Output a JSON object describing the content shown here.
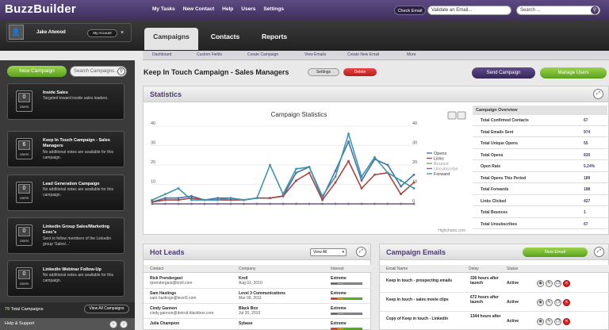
{
  "app": {
    "logo": "BuzzBuilder"
  },
  "topnav": [
    "My Tasks",
    "New Contact",
    "Help",
    "Users",
    "Settings"
  ],
  "top": {
    "check_email": "Check Email",
    "validate_placeholder": "Validate an Email...",
    "search_placeholder": "Search ...",
    "search_icon": "search-icon"
  },
  "user": {
    "name": "Jake Atwood",
    "account": "My Account",
    "close": "×"
  },
  "tabs": [
    "Campaigns",
    "Contacts",
    "Reports"
  ],
  "subnav": [
    "Dashboard",
    "Custom Fields",
    "Create Campaign",
    "View Emails",
    "Create New Email",
    "More"
  ],
  "sidebar": {
    "new_campaign": "New Campaign",
    "search_placeholder": "Search Campaigns...",
    "campaigns": [
      {
        "count": "0",
        "users": "Users",
        "title": "Inside Sales",
        "desc": "Targeted toward inside sales leaders."
      },
      {
        "count": "6",
        "users": "Users",
        "title": "Keep In Touch Campaign - Sales Managers",
        "desc": "No additional notes are available for this campaign."
      },
      {
        "count": "0",
        "users": "Users",
        "title": "Lead Generation Campaign",
        "desc": "No additional notes are available for this campaign."
      },
      {
        "count": "0",
        "users": "Users",
        "title": "Linkedin Group Sales/Marketing Exec's",
        "desc": "Sent to fellow members of the Linkedin group 'Sales/...'"
      },
      {
        "count": "0",
        "users": "Users",
        "title": "Linkedin Webinar Follow-Up",
        "desc": "No additional notes are available for this campaign."
      }
    ],
    "total_count": "79",
    "total_label": "Total Campaigns",
    "view_all": "View All Campaigns",
    "help": "Help & Support",
    "prev": "‹",
    "next": "›"
  },
  "campaign": {
    "title": "Keep In Touch Campaign - Sales Managers",
    "settings": "Settings",
    "delete": "Delete",
    "send": "Send Campaign",
    "manage": "Manage Users"
  },
  "statistics": {
    "title": "Statistics",
    "expand": "⤢"
  },
  "chart_data": {
    "type": "line",
    "title": "Campaign Statistics",
    "credit": "Highcharts.com",
    "x": [
      0,
      1,
      2,
      3,
      4,
      5,
      6,
      7,
      8,
      9,
      10,
      11,
      12,
      13,
      14,
      15,
      16,
      17,
      18,
      19,
      20
    ],
    "ylim": [
      0,
      40
    ],
    "yticks": [
      0,
      10,
      20,
      30,
      40
    ],
    "series": [
      {
        "name": "Opens",
        "color": "#4572a7",
        "values": [
          1,
          3,
          3,
          4,
          2,
          3,
          3,
          2,
          3,
          3,
          4,
          16,
          19,
          3,
          17,
          32,
          12,
          23,
          20,
          9,
          15
        ]
      },
      {
        "name": "Links",
        "color": "#aa4643",
        "values": [
          1,
          2,
          2,
          3,
          2,
          2,
          2,
          2,
          3,
          3,
          4,
          12,
          16,
          2,
          11,
          22,
          8,
          15,
          16,
          5,
          11
        ]
      },
      {
        "name": "Bounce",
        "color": "#89a54e",
        "values": [
          0,
          0,
          0,
          0,
          0,
          0,
          0,
          0,
          0,
          0,
          0,
          0,
          0,
          0,
          0,
          0,
          0,
          0,
          0,
          0,
          0
        ]
      },
      {
        "name": "Unsubscribe",
        "color": "#80699b",
        "values": [
          0,
          0,
          0,
          0,
          0,
          0,
          0,
          0,
          0,
          0,
          0,
          0,
          0,
          0,
          0,
          0,
          0,
          0,
          0,
          0,
          0
        ]
      },
      {
        "name": "Forward",
        "color": "#3d96ae",
        "values": [
          2,
          5,
          8,
          2,
          2,
          2,
          3,
          2,
          3,
          20,
          5,
          18,
          19,
          4,
          14,
          36,
          14,
          24,
          16,
          12,
          8
        ]
      }
    ]
  },
  "overview": {
    "title": "Campaign Overview",
    "rows": [
      {
        "k": "Total Confirmed Contacts",
        "v": "67"
      },
      {
        "k": "Total Emails Sent",
        "v": "974"
      },
      {
        "k": "Total Unique Opens",
        "v": "55"
      },
      {
        "k": "Total Opens",
        "v": "830"
      },
      {
        "k": "Open Rate",
        "v": "5.24%"
      },
      {
        "k": "Total Opens This Period",
        "v": "189"
      },
      {
        "k": "Total Forwards",
        "v": "188"
      },
      {
        "k": "Links Clicked",
        "v": "427"
      },
      {
        "k": "Total Bounces",
        "v": "1"
      },
      {
        "k": "Total Unsubscribes",
        "v": "67"
      }
    ]
  },
  "hot_leads": {
    "title": "Hot Leads",
    "filter": "View All",
    "cols": [
      "Contact",
      "Company",
      "Interest"
    ],
    "rows": [
      {
        "name": "Rick Prendergast",
        "email": "rprendergast@kroll.com",
        "company": "Kroll",
        "date": "Aug 02, 2010",
        "interest": "Extreme"
      },
      {
        "name": "Sam Hastings",
        "email": "sam.hastings@level3.com",
        "company": "Level 3 Communications",
        "date": "Mar 09, 2011",
        "interest": "Extreme"
      },
      {
        "name": "Cindy Gannon",
        "email": "cindy.gannon@detroit.blackbox.com",
        "company": "Black Box",
        "date": "Jul 20, 2010",
        "interest": "Extreme"
      },
      {
        "name": "Julia Champion",
        "email": "",
        "company": "Sybase",
        "date": "",
        "interest": "Extreme"
      }
    ]
  },
  "campaign_emails": {
    "title": "Campaign Emails",
    "new_email": "New Email",
    "cols": [
      "Email Name",
      "Delay",
      "Status"
    ],
    "rows": [
      {
        "name": "Keep in touch - prospecting emails",
        "delay": "336 hours after launch",
        "status": "Active"
      },
      {
        "name": "Keep in touch - sales movie clips",
        "delay": "672 hours after launch",
        "status": "Active"
      },
      {
        "name": "Copy of Keep in touch - Linkedin",
        "delay": "1344 hours after",
        "status": "Active"
      }
    ]
  }
}
